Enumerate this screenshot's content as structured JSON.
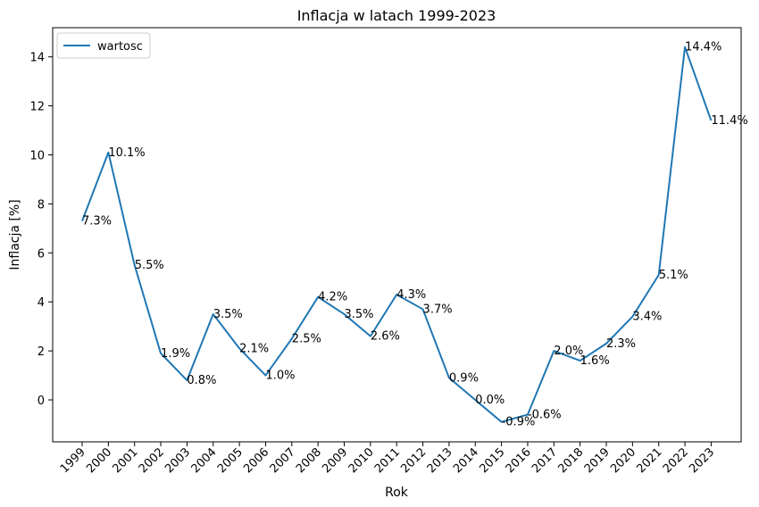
{
  "chart_data": {
    "type": "line",
    "title": "Inflacja w latach 1999-2023",
    "xlabel": "Rok",
    "ylabel": "Inflacja [%]",
    "categories": [
      "1999",
      "2000",
      "2001",
      "2002",
      "2003",
      "2004",
      "2005",
      "2006",
      "2007",
      "2008",
      "2009",
      "2010",
      "2011",
      "2012",
      "2013",
      "2014",
      "2015",
      "2016",
      "2017",
      "2018",
      "2019",
      "2020",
      "2021",
      "2022",
      "2023"
    ],
    "series": [
      {
        "name": "wartosc",
        "color": "#1f77b4",
        "values": [
          7.3,
          10.1,
          5.5,
          1.9,
          0.8,
          3.5,
          2.1,
          1.0,
          2.5,
          4.2,
          3.5,
          2.6,
          4.3,
          3.7,
          0.9,
          0.0,
          -0.9,
          -0.6,
          2.0,
          1.6,
          2.3,
          3.4,
          5.1,
          14.4,
          11.4
        ],
        "labels": [
          "7.3%",
          "10.1%",
          "5.5%",
          "1.9%",
          "0.8%",
          "3.5%",
          "2.1%",
          "1.0%",
          "2.5%",
          "4.2%",
          "3.5%",
          "2.6%",
          "4.3%",
          "3.7%",
          "0.9%",
          "0.0%",
          "-0.9%",
          "-0.6%",
          "2.0%",
          "1.6%",
          "2.3%",
          "3.4%",
          "5.1%",
          "14.4%",
          "11.4%"
        ]
      }
    ],
    "yticks": [
      "0",
      "2",
      "4",
      "6",
      "8",
      "10",
      "12",
      "14"
    ],
    "ylim": [
      -1.6,
      15.2
    ],
    "grid": false,
    "legend_position": "top-left"
  }
}
